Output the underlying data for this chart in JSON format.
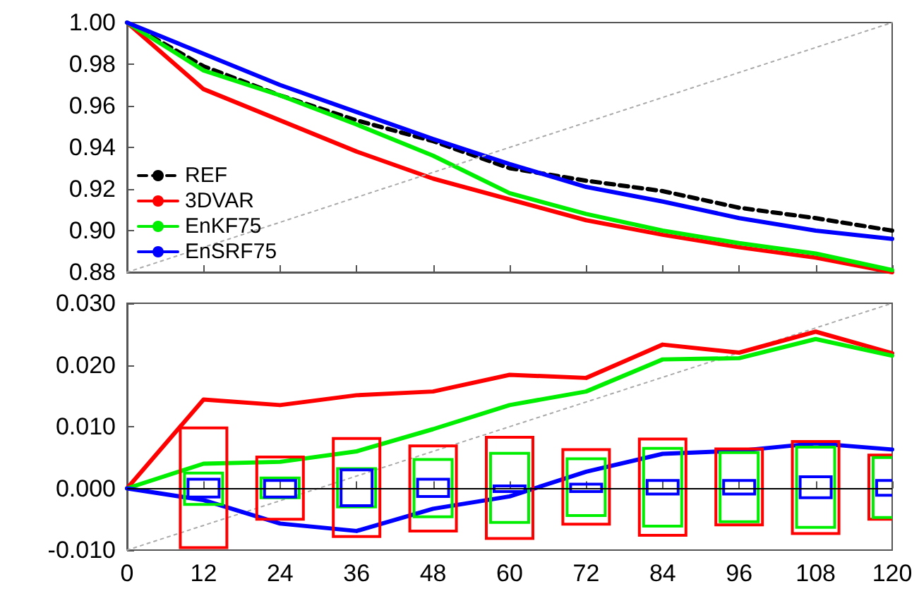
{
  "chart_data": [
    {
      "type": "line",
      "x": [
        0,
        12,
        24,
        36,
        48,
        60,
        72,
        84,
        96,
        108,
        120
      ],
      "series": [
        {
          "name": "REF",
          "color": "#000000",
          "line_style": "dashed",
          "values": [
            1.0,
            0.979,
            0.965,
            0.953,
            0.943,
            0.93,
            0.924,
            0.919,
            0.911,
            0.906,
            0.9
          ]
        },
        {
          "name": "3DVAR",
          "color": "#ff0000",
          "values": [
            1.0,
            0.968,
            0.953,
            0.938,
            0.925,
            0.915,
            0.905,
            0.898,
            0.892,
            0.887,
            0.88
          ]
        },
        {
          "name": "EnKF75",
          "color": "#00ee00",
          "values": [
            1.0,
            0.977,
            0.965,
            0.951,
            0.936,
            0.918,
            0.908,
            0.9,
            0.894,
            0.889,
            0.881
          ]
        },
        {
          "name": "EnSRF75",
          "color": "#0000ff",
          "values": [
            1.0,
            0.985,
            0.97,
            0.957,
            0.944,
            0.932,
            0.921,
            0.914,
            0.906,
            0.9,
            0.896
          ]
        },
        {
          "color": "#aaaaaa",
          "line_style": "dotted",
          "x": [
            0,
            120
          ],
          "values": [
            0.88,
            1.0
          ]
        }
      ],
      "xlim": [
        0,
        120
      ],
      "xticks": [
        0,
        12,
        24,
        36,
        48,
        60,
        72,
        84,
        96,
        108,
        120
      ],
      "ylim": [
        0.88,
        1.0
      ],
      "yticks": [
        {
          "value": 0.88,
          "label": "0.88"
        },
        {
          "value": 0.9,
          "label": "0.90"
        },
        {
          "value": 0.92,
          "label": "0.92"
        },
        {
          "value": 0.94,
          "label": "0.94"
        },
        {
          "value": 0.96,
          "label": "0.96"
        },
        {
          "value": 0.98,
          "label": "0.98"
        },
        {
          "value": 1,
          "label": "1.00"
        }
      ],
      "tick_labels": "y",
      "legend": "bottom left",
      "marker": "none",
      "line_style": "solid",
      "grid": false
    },
    {
      "type": "line",
      "x": [
        0,
        12,
        24,
        36,
        48,
        60,
        72,
        84,
        96,
        108,
        120
      ],
      "series": [
        {
          "color": "#aaaaaa",
          "line_style": "dotted",
          "x": [
            0,
            120
          ],
          "values": [
            -0.01,
            0.03
          ]
        },
        {
          "color": "#ff0000",
          "values": [
            0,
            0.0144,
            0.0135,
            0.0151,
            0.0157,
            0.0184,
            0.0179,
            0.0233,
            0.022,
            0.0254,
            0.0219
          ]
        },
        {
          "color": "#00ee00",
          "values": [
            0,
            0.004,
            0.0043,
            0.006,
            0.0096,
            0.0135,
            0.0157,
            0.0209,
            0.0211,
            0.0242,
            0.0215
          ]
        },
        {
          "color": "#0000ff",
          "values": [
            0,
            -0.0019,
            -0.0057,
            -0.0069,
            -0.0033,
            -0.0013,
            0.0027,
            0.0056,
            0.0061,
            0.0073,
            0.0063
          ]
        },
        {
          "type": "bar",
          "color": "#ff0000",
          "x": [
            12,
            24,
            36,
            48,
            60,
            72,
            84,
            96,
            108,
            120
          ],
          "base": [
            -0.0096,
            -0.005,
            -0.0078,
            -0.0069,
            -0.0081,
            -0.0058,
            -0.0076,
            -0.0059,
            -0.0073,
            -0.005
          ],
          "values": [
            0.0194,
            0.0101,
            0.0159,
            0.0138,
            0.0164,
            0.0121,
            0.0156,
            0.0123,
            0.0149,
            0.0104
          ]
        },
        {
          "type": "bar",
          "color": "#00ee00",
          "x": [
            12,
            24,
            36,
            48,
            60,
            72,
            84,
            96,
            108,
            120
          ],
          "base": [
            -0.0026,
            -0.0015,
            -0.003,
            -0.0046,
            -0.0055,
            -0.0044,
            -0.0061,
            -0.0054,
            -0.0063,
            -0.0047
          ],
          "values": [
            0.0051,
            0.0032,
            0.0062,
            0.0093,
            0.0112,
            0.0092,
            0.0126,
            0.0112,
            0.013,
            0.0097
          ]
        },
        {
          "type": "bar",
          "color": "#0000ff",
          "x": [
            12,
            24,
            36,
            48,
            60,
            72,
            84,
            96,
            108,
            120
          ],
          "base": [
            -0.0014,
            -0.0014,
            -0.0028,
            -0.0013,
            -0.0005,
            -0.0005,
            -0.0009,
            -0.0009,
            -0.0015,
            -0.0011
          ],
          "values": [
            0.0029,
            0.0027,
            0.0058,
            0.0028,
            0.0009,
            0.0012,
            0.0022,
            0.0022,
            0.0034,
            0.0024
          ]
        }
      ],
      "ref_lines": [
        {
          "axis": "y",
          "value": 0,
          "color": "#000000"
        }
      ],
      "xlim": [
        0,
        120
      ],
      "xticks": [
        0,
        12,
        24,
        36,
        48,
        60,
        72,
        84,
        96,
        108,
        120
      ],
      "ylim": [
        -0.01,
        0.03
      ],
      "yticks": [
        {
          "value": -0.01,
          "label": "-0.010"
        },
        {
          "value": 0,
          "label": "0.000"
        },
        {
          "value": 0.01,
          "label": "0.010"
        },
        {
          "value": 0.02,
          "label": "0.020"
        },
        {
          "value": 0.03,
          "label": "0.030"
        }
      ],
      "marker": "none",
      "line_style": "solid",
      "grid": false
    }
  ]
}
